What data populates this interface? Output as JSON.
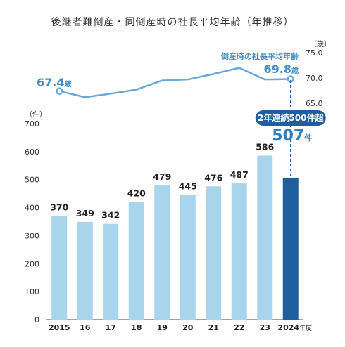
{
  "chart_data": {
    "type": "bar+line",
    "title": "後継者難倒産・同倒産時の社長平均年齢（年推移）",
    "categories": [
      "2015",
      "16",
      "17",
      "18",
      "19",
      "20",
      "21",
      "22",
      "23",
      "2024"
    ],
    "last_category_suffix": "年度",
    "bar_series": {
      "unit": "（件）",
      "values": [
        370,
        349,
        342,
        420,
        479,
        445,
        476,
        487,
        586,
        507
      ],
      "ylim": [
        0,
        700
      ],
      "yticks": [
        0,
        100,
        200,
        300,
        400,
        500,
        600,
        700
      ],
      "highlight_index": 9,
      "highlight_value_text": "507",
      "highlight_unit": "件",
      "badge": "2年連続500件超"
    },
    "line_series": {
      "name": "倒産時の社長平均年齢",
      "unit": "（歳）",
      "values": [
        67.4,
        66.2,
        66.9,
        67.7,
        69.5,
        69.7,
        70.8,
        72.0,
        69.7,
        69.8
      ],
      "ylim": [
        65.0,
        75.0
      ],
      "yticks": [
        "65.0",
        "70.0",
        "75.0"
      ],
      "first_label": "67.4",
      "last_label": "69.8",
      "label_unit": "歳"
    },
    "colors": {
      "bar": "#a9d5ec",
      "bar_highlight": "#1f5fa0",
      "line": "#6aa7d6",
      "accent": "#3f8fc4",
      "badge": "#1f5fa0",
      "axis": "#444444"
    }
  }
}
